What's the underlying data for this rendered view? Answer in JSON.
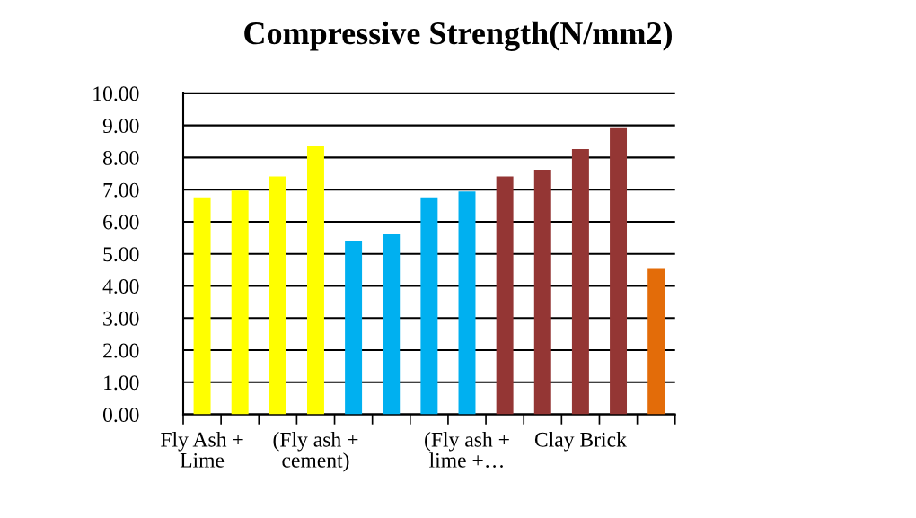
{
  "chart_data": {
    "type": "bar",
    "title": "Compressive Strength(N/mm2)",
    "categories": [
      "Fly Ash + Lime",
      null,
      null,
      "(Fly ash + cement)",
      null,
      null,
      null,
      "(Fly ash + lime +…",
      null,
      null,
      "Clay Brick",
      null,
      null
    ],
    "values": [
      6.76,
      6.97,
      7.41,
      8.35,
      5.4,
      5.61,
      6.76,
      6.94,
      7.41,
      7.62,
      8.26,
      8.91,
      4.53
    ],
    "colors": [
      "#ffff00",
      "#ffff00",
      "#ffff00",
      "#ffff00",
      "#00b0f0",
      "#00b0f0",
      "#00b0f0",
      "#00b0f0",
      "#943634",
      "#943634",
      "#943634",
      "#943634",
      "#e36c09"
    ],
    "ylim": [
      0,
      10
    ],
    "yticks": [
      {
        "value": 0,
        "label": "0.00"
      },
      {
        "value": 1,
        "label": "1.00"
      },
      {
        "value": 2,
        "label": "2.00"
      },
      {
        "value": 3,
        "label": "3.00"
      },
      {
        "value": 4,
        "label": "4.00"
      },
      {
        "value": 5,
        "label": "5.00"
      },
      {
        "value": 6,
        "label": "6.00"
      },
      {
        "value": 7,
        "label": "7.00"
      },
      {
        "value": 8,
        "label": "8.00"
      },
      {
        "value": 9,
        "label": "9.00"
      },
      {
        "value": 10,
        "label": "10.00"
      }
    ],
    "grid": "y"
  }
}
